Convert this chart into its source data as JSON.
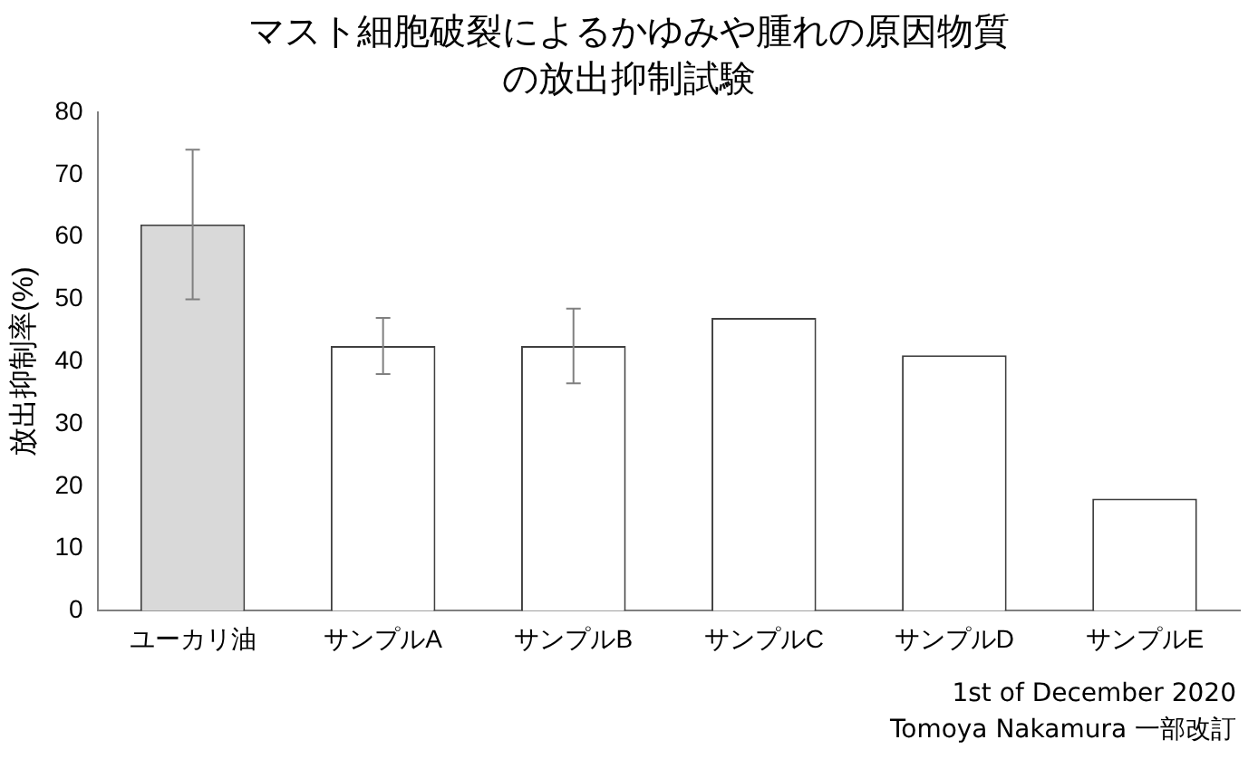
{
  "chart_data": {
    "type": "bar",
    "title": "マスト細胞破裂によるかゆみや腫れの原因物質の放出抑制試験",
    "ylabel": "放出抑制率(%)",
    "categories": [
      "ユーカリ油",
      "サンプルA",
      "サンプルB",
      "サンプルC",
      "サンプルD",
      "サンプルE"
    ],
    "values": [
      62,
      42.5,
      42.5,
      47,
      41,
      18
    ],
    "colors": [
      "#d9d9d9",
      "#ffffff",
      "#ffffff",
      "#ffffff",
      "#ffffff",
      "#ffffff"
    ],
    "errors": [
      12,
      4.5,
      6,
      null,
      null,
      null
    ],
    "ylim": [
      0,
      80
    ],
    "yticks": [
      0,
      10,
      20,
      30,
      40,
      50,
      60,
      70,
      80
    ],
    "grid": false,
    "legend": false,
    "annotations": [
      "1st of December 2020",
      "Tomoya Nakamura 一部改訂"
    ]
  }
}
